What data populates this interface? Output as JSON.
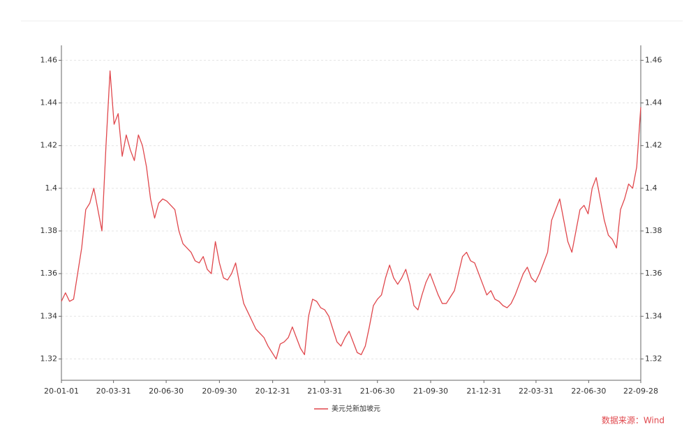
{
  "chart_data": {
    "type": "line",
    "x": [
      "20-01-01",
      "20-01-08",
      "20-01-15",
      "20-01-22",
      "20-01-29",
      "20-02-05",
      "20-02-12",
      "20-02-19",
      "20-02-26",
      "20-03-04",
      "20-03-11",
      "20-03-18",
      "20-03-25",
      "20-04-01",
      "20-04-08",
      "20-04-15",
      "20-04-22",
      "20-04-29",
      "20-05-06",
      "20-05-13",
      "20-05-20",
      "20-05-27",
      "20-06-03",
      "20-06-10",
      "20-06-17",
      "20-06-24",
      "20-07-01",
      "20-07-08",
      "20-07-15",
      "20-07-22",
      "20-07-29",
      "20-08-05",
      "20-08-12",
      "20-08-19",
      "20-08-26",
      "20-09-02",
      "20-09-09",
      "20-09-16",
      "20-09-23",
      "20-09-30",
      "20-10-07",
      "20-10-14",
      "20-10-21",
      "20-10-28",
      "20-11-04",
      "20-11-11",
      "20-11-18",
      "20-11-25",
      "20-12-02",
      "20-12-09",
      "20-12-16",
      "20-12-23",
      "20-12-30",
      "21-01-06",
      "21-01-13",
      "21-01-20",
      "21-01-27",
      "21-02-03",
      "21-02-10",
      "21-02-17",
      "21-02-24",
      "21-03-03",
      "21-03-10",
      "21-03-17",
      "21-03-24",
      "21-03-31",
      "21-04-07",
      "21-04-14",
      "21-04-21",
      "21-04-28",
      "21-05-05",
      "21-05-12",
      "21-05-19",
      "21-05-26",
      "21-06-02",
      "21-06-09",
      "21-06-16",
      "21-06-23",
      "21-06-30",
      "21-07-07",
      "21-07-14",
      "21-07-21",
      "21-07-28",
      "21-08-04",
      "21-08-11",
      "21-08-18",
      "21-08-25",
      "21-09-01",
      "21-09-08",
      "21-09-15",
      "21-09-22",
      "21-09-29",
      "21-10-06",
      "21-10-13",
      "21-10-20",
      "21-10-27",
      "21-11-03",
      "21-11-10",
      "21-11-17",
      "21-11-24",
      "21-12-01",
      "21-12-08",
      "21-12-15",
      "21-12-22",
      "21-12-29",
      "22-01-05",
      "22-01-12",
      "22-01-19",
      "22-01-26",
      "22-02-02",
      "22-02-09",
      "22-02-16",
      "22-02-23",
      "22-03-02",
      "22-03-09",
      "22-03-16",
      "22-03-23",
      "22-03-30",
      "22-04-06",
      "22-04-13",
      "22-04-20",
      "22-04-27",
      "22-05-04",
      "22-05-11",
      "22-05-18",
      "22-05-25",
      "22-06-01",
      "22-06-08",
      "22-06-15",
      "22-06-22",
      "22-06-29",
      "22-07-06",
      "22-07-13",
      "22-07-20",
      "22-07-27",
      "22-08-03",
      "22-08-10",
      "22-08-17",
      "22-08-24",
      "22-08-31",
      "22-09-07",
      "22-09-14",
      "22-09-21",
      "22-09-28"
    ],
    "series": [
      {
        "name": "美元兑新加坡元",
        "color": "#e0474c",
        "values": [
          1.347,
          1.351,
          1.347,
          1.348,
          1.36,
          1.372,
          1.39,
          1.393,
          1.4,
          1.39,
          1.38,
          1.42,
          1.455,
          1.43,
          1.435,
          1.415,
          1.425,
          1.418,
          1.413,
          1.425,
          1.42,
          1.41,
          1.395,
          1.386,
          1.393,
          1.395,
          1.394,
          1.392,
          1.39,
          1.38,
          1.374,
          1.372,
          1.37,
          1.366,
          1.365,
          1.368,
          1.362,
          1.36,
          1.375,
          1.365,
          1.358,
          1.357,
          1.36,
          1.365,
          1.355,
          1.346,
          1.342,
          1.338,
          1.334,
          1.332,
          1.33,
          1.326,
          1.323,
          1.32,
          1.327,
          1.328,
          1.33,
          1.335,
          1.33,
          1.325,
          1.322,
          1.34,
          1.348,
          1.347,
          1.344,
          1.343,
          1.34,
          1.334,
          1.328,
          1.326,
          1.33,
          1.333,
          1.328,
          1.323,
          1.322,
          1.326,
          1.335,
          1.345,
          1.348,
          1.35,
          1.358,
          1.364,
          1.358,
          1.355,
          1.358,
          1.362,
          1.355,
          1.345,
          1.343,
          1.35,
          1.356,
          1.36,
          1.355,
          1.35,
          1.346,
          1.346,
          1.349,
          1.352,
          1.36,
          1.368,
          1.37,
          1.366,
          1.365,
          1.36,
          1.355,
          1.35,
          1.352,
          1.348,
          1.347,
          1.345,
          1.344,
          1.346,
          1.35,
          1.355,
          1.36,
          1.363,
          1.358,
          1.356,
          1.36,
          1.365,
          1.37,
          1.385,
          1.39,
          1.395,
          1.385,
          1.375,
          1.37,
          1.38,
          1.39,
          1.392,
          1.388,
          1.4,
          1.405,
          1.395,
          1.385,
          1.378,
          1.376,
          1.372,
          1.39,
          1.395,
          1.402,
          1.4,
          1.41,
          1.438
        ]
      }
    ],
    "xticks": [
      "20-01-01",
      "20-03-31",
      "20-06-30",
      "20-09-30",
      "20-12-31",
      "21-03-31",
      "21-06-30",
      "21-09-30",
      "21-12-31",
      "22-03-31",
      "22-06-30",
      "22-09-28"
    ],
    "ylim": [
      1.31,
      1.467
    ],
    "yticks": [
      1.32,
      1.34,
      1.36,
      1.38,
      1.4,
      1.42,
      1.44,
      1.46
    ],
    "y2lim": [
      1.31,
      1.467
    ],
    "y2ticks": [
      1.32,
      1.34,
      1.36,
      1.38,
      1.4,
      1.42,
      1.44,
      1.46
    ],
    "grid": true,
    "legend": "bottom",
    "source": "数据来源：Wind"
  }
}
